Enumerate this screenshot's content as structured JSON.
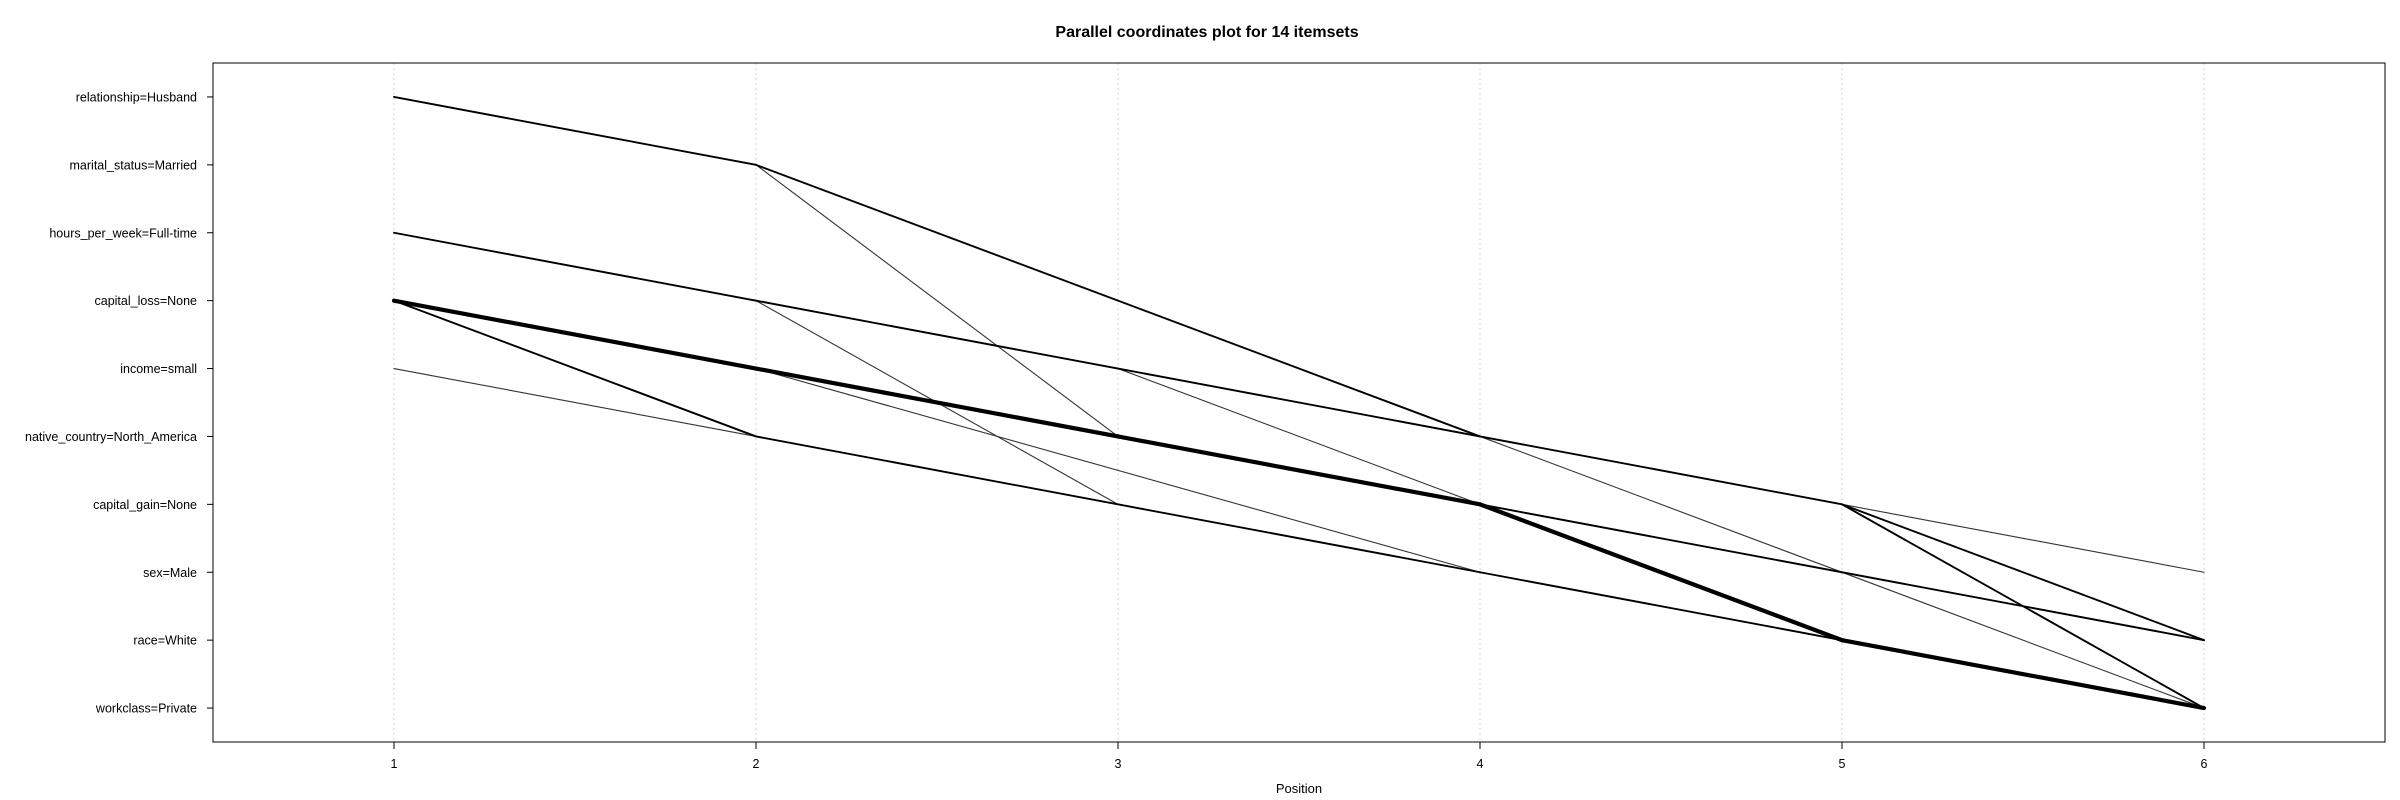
{
  "chart_data": {
    "type": "line",
    "title": "Parallel coordinates plot for 14 itemsets",
    "xlabel": "Position",
    "ylabel": "",
    "x_ticks": [
      "1",
      "2",
      "3",
      "4",
      "5",
      "6"
    ],
    "xlim": [
      0.5,
      6.5
    ],
    "ylim": [
      0.5,
      10.5
    ],
    "items": [
      "workclass=Private",
      "race=White",
      "sex=Male",
      "capital_gain=None",
      "native_country=North_America",
      "income=small",
      "capital_loss=None",
      "hours_per_week=Full-time",
      "marital_status=Married",
      "relationship=Husband"
    ],
    "grid": "vertical dotted lines at each position",
    "line_color": "#000000",
    "segments": [
      {
        "from": [
          1,
          10
        ],
        "to": [
          2,
          9
        ],
        "weight": 2
      },
      {
        "from": [
          2,
          9
        ],
        "to": [
          4,
          5
        ],
        "weight": 2
      },
      {
        "from": [
          2,
          9
        ],
        "to": [
          3,
          5
        ],
        "weight": 1
      },
      {
        "from": [
          1,
          8
        ],
        "to": [
          2,
          7
        ],
        "weight": 2
      },
      {
        "from": [
          2,
          7
        ],
        "to": [
          3,
          6
        ],
        "weight": 2
      },
      {
        "from": [
          2,
          7
        ],
        "to": [
          3,
          4
        ],
        "weight": 1
      },
      {
        "from": [
          1,
          7
        ],
        "to": [
          2,
          6
        ],
        "weight": 4
      },
      {
        "from": [
          1,
          7
        ],
        "to": [
          2,
          5
        ],
        "weight": 2
      },
      {
        "from": [
          1,
          6
        ],
        "to": [
          2,
          5
        ],
        "weight": 1
      },
      {
        "from": [
          2,
          6
        ],
        "to": [
          3,
          5
        ],
        "weight": 4
      },
      {
        "from": [
          2,
          6
        ],
        "to": [
          4,
          3
        ],
        "weight": 1
      },
      {
        "from": [
          2,
          5
        ],
        "to": [
          4,
          3
        ],
        "weight": 2
      },
      {
        "from": [
          3,
          6
        ],
        "to": [
          5,
          4
        ],
        "weight": 2
      },
      {
        "from": [
          3,
          6
        ],
        "to": [
          5,
          2
        ],
        "weight": 1
      },
      {
        "from": [
          3,
          5
        ],
        "to": [
          4,
          4
        ],
        "weight": 4
      },
      {
        "from": [
          4,
          5
        ],
        "to": [
          6,
          1
        ],
        "weight": 1
      },
      {
        "from": [
          4,
          4
        ],
        "to": [
          5,
          2
        ],
        "weight": 4
      },
      {
        "from": [
          4,
          4
        ],
        "to": [
          6,
          2
        ],
        "weight": 2
      },
      {
        "from": [
          4,
          3
        ],
        "to": [
          5,
          2
        ],
        "weight": 2
      },
      {
        "from": [
          5,
          2
        ],
        "to": [
          6,
          1
        ],
        "weight": 4
      },
      {
        "from": [
          5,
          4
        ],
        "to": [
          6,
          3
        ],
        "weight": 1
      },
      {
        "from": [
          5,
          4
        ],
        "to": [
          6,
          2
        ],
        "weight": 2
      },
      {
        "from": [
          5,
          4
        ],
        "to": [
          6,
          1
        ],
        "weight": 2
      }
    ]
  }
}
